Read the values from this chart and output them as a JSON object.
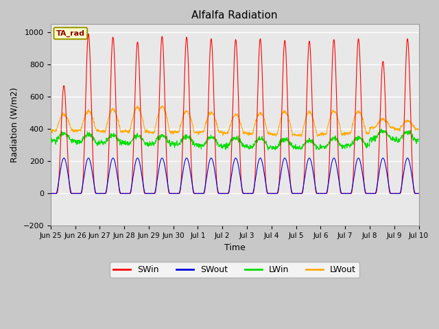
{
  "title": "Alfalfa Radiation",
  "ylabel": "Radiation (W/m2)",
  "xlabel": "Time",
  "ylim": [
    -200,
    1050
  ],
  "bg_color": "#e8e8e8",
  "grid_color": "white",
  "legend_label": "TA_rad",
  "series": {
    "SWin": {
      "color": "#ff0000"
    },
    "SWout": {
      "color": "#0000dd"
    },
    "LWin": {
      "color": "#00dd00"
    },
    "LWout": {
      "color": "#ffaa00"
    }
  },
  "num_days": 15,
  "tick_labels": [
    "Jun 25",
    "Jun 26",
    "Jun 27",
    "Jun 28",
    "Jun 29",
    "Jun 30",
    "Jul 1",
    "Jul 2",
    "Jul 3",
    "Jul 4",
    "Jul 5",
    "Jul 6",
    "Jul 7",
    "Jul 8",
    "Jul 9",
    "Jul 10"
  ]
}
